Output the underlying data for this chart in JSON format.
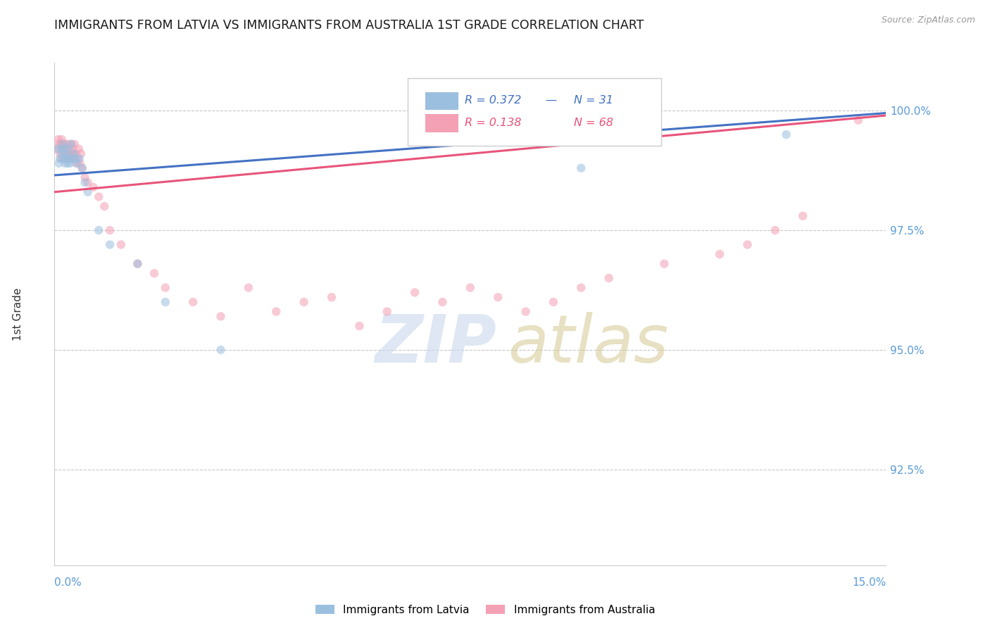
{
  "title": "IMMIGRANTS FROM LATVIA VS IMMIGRANTS FROM AUSTRALIA 1ST GRADE CORRELATION CHART",
  "source": "Source: ZipAtlas.com",
  "ylabel": "1st Grade",
  "ytick_labels": [
    "100.0%",
    "97.5%",
    "95.0%",
    "92.5%"
  ],
  "ytick_values": [
    1.0,
    0.975,
    0.95,
    0.925
  ],
  "xlim": [
    0.0,
    15.0
  ],
  "ylim": [
    0.905,
    1.01
  ],
  "legend_latvia_r": "R = 0.372",
  "legend_latvia_n": "N = 31",
  "legend_australia_r": "R = 0.138",
  "legend_australia_n": "N = 68",
  "latvia_color": "#9bbfdf",
  "australia_color": "#f4a0b5",
  "latvia_line_color": "#4472c4",
  "australia_line_color": "#e8547a",
  "latvia_x": [
    0.05,
    0.08,
    0.1,
    0.12,
    0.14,
    0.15,
    0.16,
    0.18,
    0.19,
    0.2,
    0.22,
    0.24,
    0.25,
    0.26,
    0.28,
    0.3,
    0.32,
    0.35,
    0.38,
    0.4,
    0.45,
    0.5,
    0.55,
    0.6,
    0.8,
    1.0,
    1.5,
    2.0,
    3.0,
    9.5,
    13.2
  ],
  "latvia_y": [
    0.992,
    0.989,
    0.99,
    0.992,
    0.991,
    0.993,
    0.99,
    0.992,
    0.989,
    0.991,
    0.99,
    0.989,
    0.992,
    0.99,
    0.989,
    0.993,
    0.99,
    0.991,
    0.99,
    0.989,
    0.99,
    0.988,
    0.985,
    0.983,
    0.975,
    0.972,
    0.968,
    0.96,
    0.95,
    0.988,
    0.995
  ],
  "australia_x": [
    0.05,
    0.07,
    0.08,
    0.1,
    0.11,
    0.12,
    0.13,
    0.14,
    0.15,
    0.16,
    0.17,
    0.18,
    0.19,
    0.2,
    0.21,
    0.22,
    0.23,
    0.24,
    0.25,
    0.26,
    0.27,
    0.28,
    0.3,
    0.31,
    0.32,
    0.33,
    0.34,
    0.35,
    0.36,
    0.38,
    0.4,
    0.42,
    0.44,
    0.46,
    0.48,
    0.5,
    0.55,
    0.6,
    0.7,
    0.8,
    0.9,
    1.0,
    1.2,
    1.5,
    1.8,
    2.0,
    2.5,
    3.0,
    3.5,
    4.0,
    4.5,
    5.0,
    5.5,
    6.0,
    6.5,
    7.0,
    7.5,
    8.0,
    8.5,
    9.0,
    9.5,
    10.0,
    11.0,
    12.0,
    12.5,
    13.0,
    13.5,
    14.5
  ],
  "australia_y": [
    0.992,
    0.994,
    0.993,
    0.991,
    0.993,
    0.99,
    0.994,
    0.992,
    0.993,
    0.991,
    0.992,
    0.99,
    0.993,
    0.991,
    0.992,
    0.99,
    0.993,
    0.991,
    0.99,
    0.992,
    0.991,
    0.99,
    0.993,
    0.991,
    0.99,
    0.992,
    0.991,
    0.99,
    0.993,
    0.991,
    0.989,
    0.99,
    0.992,
    0.989,
    0.991,
    0.988,
    0.986,
    0.985,
    0.984,
    0.982,
    0.98,
    0.975,
    0.972,
    0.968,
    0.966,
    0.963,
    0.96,
    0.957,
    0.963,
    0.958,
    0.96,
    0.961,
    0.955,
    0.958,
    0.962,
    0.96,
    0.963,
    0.961,
    0.958,
    0.96,
    0.963,
    0.965,
    0.968,
    0.97,
    0.972,
    0.975,
    0.978,
    0.998
  ],
  "latvia_trend_x": [
    0.0,
    15.0
  ],
  "latvia_trend_y": [
    0.9865,
    0.9995
  ],
  "australia_trend_x": [
    0.0,
    15.0
  ],
  "australia_trend_y": [
    0.983,
    0.999
  ],
  "marker_size": 80,
  "background_color": "#ffffff",
  "grid_color": "#c8c8c8",
  "title_color": "#1a1a1a",
  "axis_label_color": "#5b9bd5"
}
